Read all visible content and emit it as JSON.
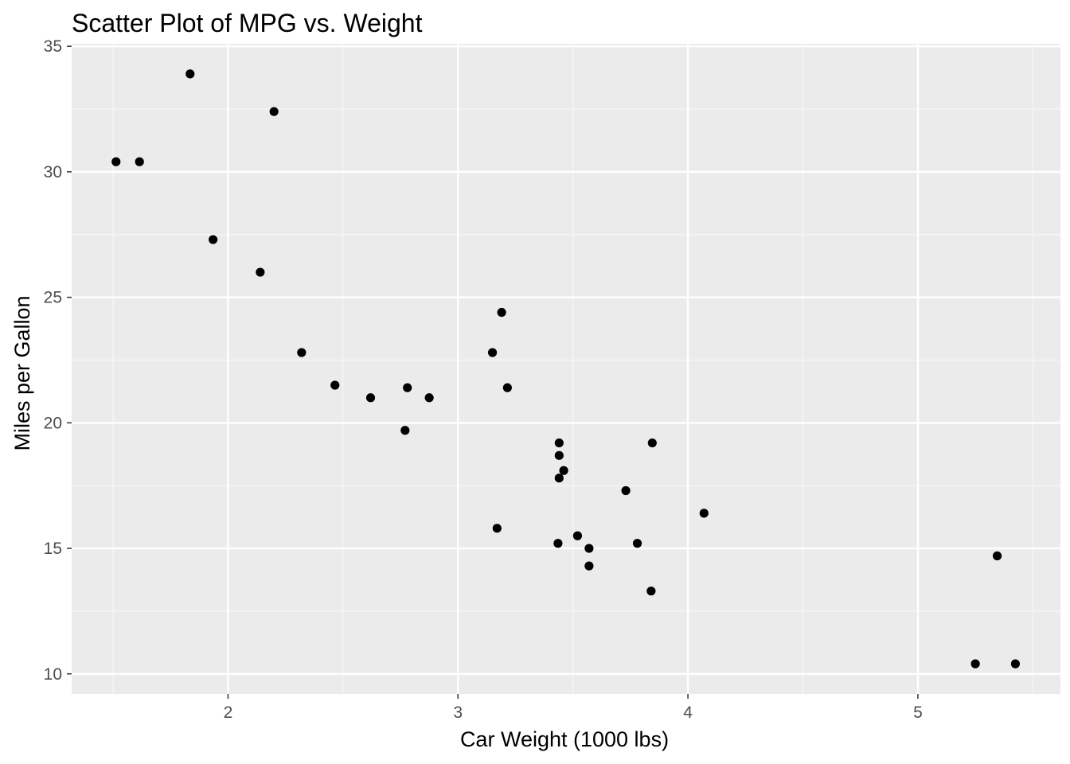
{
  "chart_data": {
    "type": "scatter",
    "title": "Scatter Plot of MPG vs. Weight",
    "xlabel": "Car Weight (1000 lbs)",
    "ylabel": "Miles per Gallon",
    "xlim": [
      1.32,
      5.62
    ],
    "ylim": [
      9.2,
      35.1
    ],
    "x_ticks": [
      2,
      3,
      4,
      5
    ],
    "y_ticks": [
      10,
      15,
      20,
      25,
      30,
      35
    ],
    "x_minor_ticks": [
      1.5,
      2.5,
      3.5,
      4.5,
      5.5
    ],
    "y_minor_ticks": [
      12.5,
      17.5,
      22.5,
      27.5,
      32.5
    ],
    "grid": true,
    "legend": "none",
    "colors": {
      "panel_background": "#ebebeb",
      "grid_major": "#ffffff",
      "grid_minor": "#f7f7f7",
      "point": "#000000",
      "tick_mark": "#333333"
    },
    "points": [
      {
        "x": 2.62,
        "y": 21.0
      },
      {
        "x": 2.875,
        "y": 21.0
      },
      {
        "x": 2.32,
        "y": 22.8
      },
      {
        "x": 3.215,
        "y": 21.4
      },
      {
        "x": 3.44,
        "y": 18.7
      },
      {
        "x": 3.46,
        "y": 18.1
      },
      {
        "x": 3.57,
        "y": 14.3
      },
      {
        "x": 3.19,
        "y": 24.4
      },
      {
        "x": 3.15,
        "y": 22.8
      },
      {
        "x": 3.44,
        "y": 19.2
      },
      {
        "x": 3.44,
        "y": 17.8
      },
      {
        "x": 4.07,
        "y": 16.4
      },
      {
        "x": 3.73,
        "y": 17.3
      },
      {
        "x": 3.78,
        "y": 15.2
      },
      {
        "x": 5.25,
        "y": 10.4
      },
      {
        "x": 5.424,
        "y": 10.4
      },
      {
        "x": 5.345,
        "y": 14.7
      },
      {
        "x": 2.2,
        "y": 32.4
      },
      {
        "x": 1.615,
        "y": 30.4
      },
      {
        "x": 1.835,
        "y": 33.9
      },
      {
        "x": 2.465,
        "y": 21.5
      },
      {
        "x": 3.52,
        "y": 15.5
      },
      {
        "x": 3.435,
        "y": 15.2
      },
      {
        "x": 3.84,
        "y": 13.3
      },
      {
        "x": 3.845,
        "y": 19.2
      },
      {
        "x": 1.935,
        "y": 27.3
      },
      {
        "x": 2.14,
        "y": 26.0
      },
      {
        "x": 1.513,
        "y": 30.4
      },
      {
        "x": 3.17,
        "y": 15.8
      },
      {
        "x": 2.77,
        "y": 19.7
      },
      {
        "x": 3.57,
        "y": 15.0
      },
      {
        "x": 2.78,
        "y": 21.4
      }
    ]
  }
}
